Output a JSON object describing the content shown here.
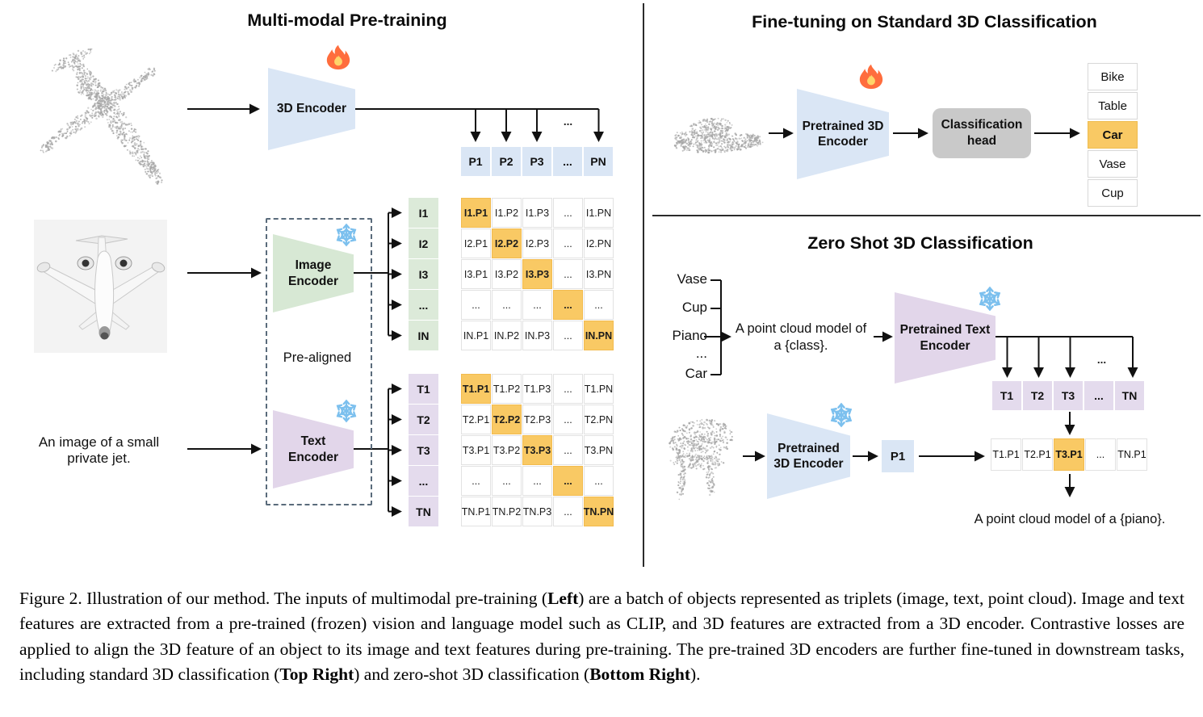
{
  "panels": {
    "pretrain": {
      "title": "Multi-modal Pre-training",
      "encoder_3d": "3D Encoder",
      "image_encoder": "Image Encoder",
      "text_encoder": "Text Encoder",
      "pre_aligned": "Pre-aligned",
      "jet_caption": "An image of a small private jet.",
      "dots": "...",
      "p_row": [
        "P1",
        "P2",
        "P3",
        "...",
        "PN"
      ],
      "image_rows": [
        "I1",
        "I2",
        "I3",
        "...",
        "IN"
      ],
      "image_matrix": [
        [
          "I1.P1",
          "I1.P2",
          "I1.P3",
          "...",
          "I1.PN"
        ],
        [
          "I2.P1",
          "I2.P2",
          "I2.P3",
          "...",
          "I2.PN"
        ],
        [
          "I3.P1",
          "I3.P2",
          "I3.P3",
          "...",
          "I3.PN"
        ],
        [
          "...",
          "...",
          "...",
          "...",
          "..."
        ],
        [
          "IN.P1",
          "IN.P2",
          "IN.P3",
          "...",
          "IN.PN"
        ]
      ],
      "text_rows": [
        "T1",
        "T2",
        "T3",
        "...",
        "TN"
      ],
      "text_matrix": [
        [
          "T1.P1",
          "T1.P2",
          "T1.P3",
          "...",
          "T1.PN"
        ],
        [
          "T2.P1",
          "T2.P2",
          "T2.P3",
          "...",
          "T2.PN"
        ],
        [
          "T3.P1",
          "T3.P2",
          "T3.P3",
          "...",
          "T3.PN"
        ],
        [
          "...",
          "...",
          "...",
          "...",
          "..."
        ],
        [
          "TN.P1",
          "TN.P2",
          "TN.P3",
          "...",
          "TN.PN"
        ]
      ]
    },
    "finetune": {
      "title": "Fine-tuning on Standard 3D Classification",
      "encoder": "Pretrained 3D Encoder",
      "head": "Classification head",
      "classes": [
        "Bike",
        "Table",
        "Car",
        "Vase",
        "Cup"
      ],
      "highlight_index": 2
    },
    "zeroshot": {
      "title": "Zero Shot 3D Classification",
      "class_prompts": [
        "Vase",
        "Cup",
        "Piano",
        "...",
        "Car"
      ],
      "prompt": "A point cloud model of a {class}.",
      "text_encoder": "Pretrained Text Encoder",
      "encoder_3d": "Pretrained 3D Encoder",
      "p1": "P1",
      "dots": "...",
      "t_row": [
        "T1",
        "T2",
        "T3",
        "...",
        "TN"
      ],
      "result_row": [
        "T1.P1",
        "T2.P1",
        "T3.P1",
        "...",
        "TN.P1"
      ],
      "result_highlight_index": 2,
      "output_text": "A point cloud model of a {piano}."
    }
  },
  "icons": {
    "flame-icon": "🔥",
    "snowflake-icon": "❄"
  },
  "colors": {
    "highlight_orange": "#f9c964",
    "encoder_blue": "#dae6f5",
    "encoder_green": "#d7e8d4",
    "encoder_purple": "#e2d6ea",
    "head_gray": "#c9c9c9"
  },
  "caption": {
    "segments": [
      {
        "text": "Figure 2. Illustration of our method. The inputs of multimodal pre-training (",
        "bold": false
      },
      {
        "text": "Left",
        "bold": true
      },
      {
        "text": ") are a batch of objects represented as triplets (image, text, point cloud). Image and text features are extracted from a pre-trained (frozen) vision and language model such as CLIP, and 3D features are extracted from a 3D encoder. Contrastive losses are applied to align the 3D feature of an object to its image and text features during pre-training. The pre-trained 3D encoders are further fine-tuned in downstream tasks, including standard 3D classification (",
        "bold": false
      },
      {
        "text": "Top Right",
        "bold": true
      },
      {
        "text": ") and zero-shot 3D classification (",
        "bold": false
      },
      {
        "text": "Bottom Right",
        "bold": true
      },
      {
        "text": ").",
        "bold": false
      }
    ]
  }
}
